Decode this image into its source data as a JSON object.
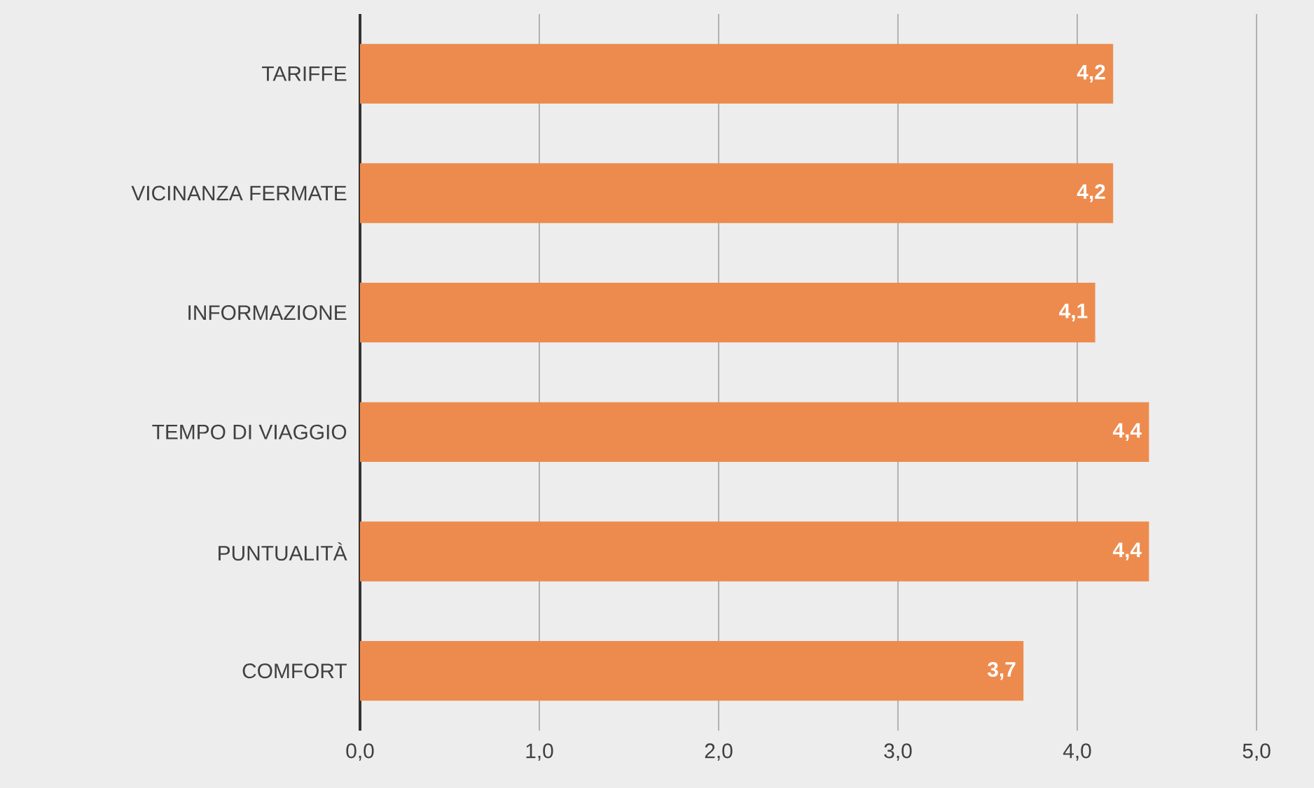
{
  "chart_data": {
    "type": "bar",
    "orientation": "horizontal",
    "categories": [
      "TARIFFE",
      "VICINANZA FERMATE",
      "INFORMAZIONE",
      "TEMPO DI VIAGGIO",
      "PUNTUALITÀ",
      "COMFORT"
    ],
    "values": [
      4.2,
      4.2,
      4.1,
      4.4,
      4.4,
      3.7
    ],
    "value_labels": [
      "4,2",
      "4,2",
      "4,1",
      "4,4",
      "4,4",
      "3,7"
    ],
    "color": "#ed8b4e",
    "xlim": [
      0,
      5
    ],
    "xticks": [
      {
        "value": 0,
        "label": "0,0"
      },
      {
        "value": 1,
        "label": "1,0"
      },
      {
        "value": 2,
        "label": "2,0"
      },
      {
        "value": 3,
        "label": "3,0"
      },
      {
        "value": 4,
        "label": "4,0"
      },
      {
        "value": 5,
        "label": "5,0"
      }
    ],
    "grid": "x"
  }
}
